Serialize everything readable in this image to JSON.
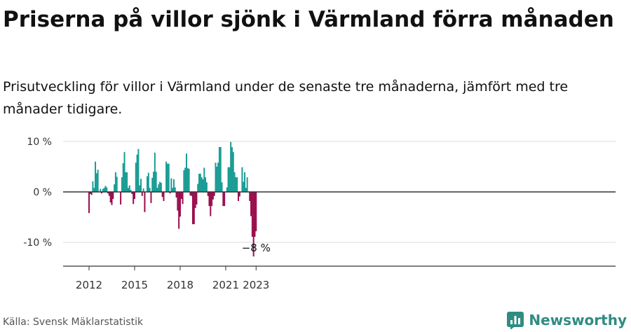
{
  "title": "Priserna på villor sjönk i Värmland förra månaden",
  "subtitle": "Prisutveckling för villor i Värmland under de senaste tre månaderna, jämfört med tre månader tidigare.",
  "source": "Källa: Svensk Mäklarstatistik",
  "brand": {
    "name": "Newsworthy",
    "icon": "newsworthy-logo-icon",
    "color": "#2f8c82"
  },
  "chart_data": {
    "type": "bar",
    "x_start": "2012-01",
    "y_ticks": [
      {
        "value": 10,
        "label": "10 %"
      },
      {
        "value": 0,
        "label": "0 %"
      },
      {
        "value": -10,
        "label": "-10 %"
      }
    ],
    "x_ticks": [
      {
        "value": "2012",
        "index": 0
      },
      {
        "value": "2015",
        "index": 36
      },
      {
        "value": "2018",
        "index": 72
      },
      {
        "value": "2021",
        "index": 108
      },
      {
        "value": "2023",
        "index": 132
      }
    ],
    "ylim": [
      -14,
      10.5
    ],
    "grid": true,
    "annotation": {
      "label": "−8 %",
      "index": 132
    },
    "colors": {
      "positive": "#1a9c94",
      "negative": "#9b0e4f",
      "axis": "#333333",
      "grid": "#dddddd",
      "text": "#333333"
    },
    "values": [
      -4.2,
      -0.4,
      -0.6,
      2.1,
      0.8,
      6.0,
      3.7,
      4.4,
      0.0,
      0.6,
      -0.3,
      0.6,
      0.8,
      1.2,
      0.9,
      -0.3,
      -0.8,
      -2.1,
      -2.6,
      -1.4,
      1.5,
      3.9,
      3.0,
      0.0,
      0.0,
      -2.5,
      2.9,
      5.7,
      7.9,
      3.9,
      3.9,
      0.8,
      1.3,
      0.4,
      -0.4,
      -2.4,
      -1.4,
      5.8,
      7.4,
      8.5,
      1.3,
      2.6,
      -0.8,
      0.7,
      -4.0,
      0.0,
      3.1,
      3.8,
      0.8,
      -2.2,
      2.8,
      4.0,
      7.8,
      4.0,
      0.8,
      1.5,
      2.0,
      1.8,
      -1.0,
      -1.8,
      0.0,
      6.0,
      5.6,
      5.6,
      -0.3,
      2.7,
      0.8,
      2.5,
      0.9,
      -1.1,
      -3.7,
      -7.3,
      -4.9,
      -1.4,
      -2.4,
      4.3,
      4.8,
      7.6,
      4.7,
      4.6,
      -0.7,
      -0.8,
      -6.4,
      -6.4,
      -3.2,
      -2.5,
      1.6,
      3.6,
      3.6,
      2.9,
      2.5,
      4.8,
      2.9,
      1.9,
      -0.8,
      -2.8,
      -4.8,
      -2.8,
      -1.5,
      -0.8,
      5.8,
      5.0,
      5.8,
      8.9,
      8.9,
      1.9,
      -2.8,
      -2.8,
      0.0,
      0.9,
      4.9,
      4.9,
      9.9,
      8.9,
      7.9,
      3.9,
      2.9,
      2.9,
      -1.8,
      -0.9,
      0.0,
      4.9,
      2.0,
      3.9,
      0.8,
      2.9,
      0.0,
      -1.8,
      -4.8,
      -8.9,
      -12.8,
      -8.9,
      -7.8
    ]
  }
}
